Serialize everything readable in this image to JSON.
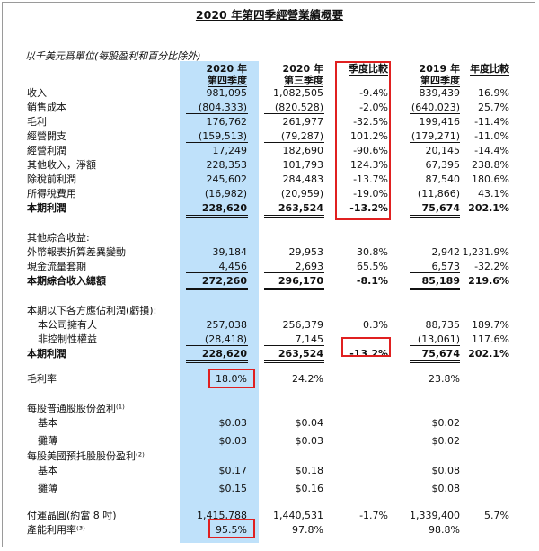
{
  "title": "2020 年第四季經營業績概要",
  "unit_note": "以千美元爲單位(每股盈利和百分比除外)",
  "headers": {
    "c1": [
      "2020 年",
      "第四季度"
    ],
    "c2": [
      "2020 年",
      "第三季度"
    ],
    "c3": [
      "季度比較"
    ],
    "c4": [
      "2019 年",
      "第四季度"
    ],
    "c5": [
      "年度比較"
    ]
  },
  "rows": [
    {
      "label": "收入",
      "c1": "981,095",
      "c2": "1,082,505",
      "c3": "-9.4%",
      "c4": "839,439",
      "c5": "16.9%"
    },
    {
      "label": "銷售成本",
      "c1": "(804,333)",
      "c2": "(820,528)",
      "c3": "-2.0%",
      "c4": "(640,023)",
      "c5": "25.7%"
    },
    {
      "label": "毛利",
      "c1": "176,762",
      "c2": "261,977",
      "c3": "-32.5%",
      "c4": "199,416",
      "c5": "-11.4%"
    },
    {
      "label": "經營開支",
      "c1": "(159,513)",
      "c2": "(79,287)",
      "c3": "101.2%",
      "c4": "(179,271)",
      "c5": "-11.0%"
    },
    {
      "label": "經營利潤",
      "c1": "17,249",
      "c2": "182,690",
      "c3": "-90.6%",
      "c4": "20,145",
      "c5": "-14.4%"
    },
    {
      "label": "其他收入，淨額",
      "c1": "228,353",
      "c2": "101,793",
      "c3": "124.3%",
      "c4": "67,395",
      "c5": "238.8%"
    },
    {
      "label": "除稅前利潤",
      "c1": "245,602",
      "c2": "284,483",
      "c3": "-13.7%",
      "c4": "87,540",
      "c5": "180.6%"
    },
    {
      "label": "所得稅費用",
      "c1": "(16,982)",
      "c2": "(20,959)",
      "c3": "-19.0%",
      "c4": "(11,866)",
      "c5": "43.1%"
    },
    {
      "label": "本期利潤",
      "c1": "228,620",
      "c2": "263,524",
      "c3": "-13.2%",
      "c4": "75,674",
      "c5": "202.1%"
    },
    {
      "label": "其他綜合收益:"
    },
    {
      "label": "外幣報表折算差異變動",
      "c1": "39,184",
      "c2": "29,953",
      "c3": "30.8%",
      "c4": "2,942",
      "c5": "1,231.9%"
    },
    {
      "label": "現金流量套期",
      "c1": "4,456",
      "c2": "2,693",
      "c3": "65.5%",
      "c4": "6,573",
      "c5": "-32.2%"
    },
    {
      "label": "本期綜合收入總額",
      "c1": "272,260",
      "c2": "296,170",
      "c3": "-8.1%",
      "c4": "85,189",
      "c5": "219.6%"
    },
    {
      "label": "本期以下各方應佔利潤(虧損):"
    },
    {
      "label": "本公司擁有人",
      "c1": "257,038",
      "c2": "256,379",
      "c3": "0.3%",
      "c4": "88,735",
      "c5": "189.7%"
    },
    {
      "label": "非控制性權益",
      "c1": "(28,418)",
      "c2": "7,145",
      "c3": "",
      "c4": "(13,061)",
      "c5": "117.6%"
    },
    {
      "label": "本期利潤",
      "c1": "228,620",
      "c2": "263,524",
      "c3": "-13.2%",
      "c4": "75,674",
      "c5": "202.1%"
    },
    {
      "label": "毛利率",
      "c1": "18.0%",
      "c2": "24.2%",
      "c3": "",
      "c4": "23.8%",
      "c5": ""
    },
    {
      "label": "每股普通股股份盈利⁽¹⁾"
    },
    {
      "label": "基本",
      "c1": "$0.03",
      "c2": "$0.04",
      "c3": "",
      "c4": "$0.02",
      "c5": ""
    },
    {
      "label": "攤薄",
      "c1": "$0.03",
      "c2": "$0.03",
      "c3": "",
      "c4": "$0.02",
      "c5": ""
    },
    {
      "label": "每股美國預托股股份盈利⁽²⁾"
    },
    {
      "label": "基本",
      "c1": "$0.17",
      "c2": "$0.18",
      "c3": "",
      "c4": "$0.08",
      "c5": ""
    },
    {
      "label": "攤薄",
      "c1": "$0.15",
      "c2": "$0.16",
      "c3": "",
      "c4": "$0.08",
      "c5": ""
    },
    {
      "label": "付運晶圓(約當 8 吋)",
      "c1": "1,415,788",
      "c2": "1,440,531",
      "c3": "-1.7%",
      "c4": "1,339,400",
      "c5": "5.7%"
    },
    {
      "label": "產能利用率⁽³⁾",
      "c1": "95.5%",
      "c2": "97.8%",
      "c3": "",
      "c4": "98.8%",
      "c5": ""
    }
  ],
  "colors": {
    "highlight": "#bfe1fa",
    "box": "#e02020"
  }
}
